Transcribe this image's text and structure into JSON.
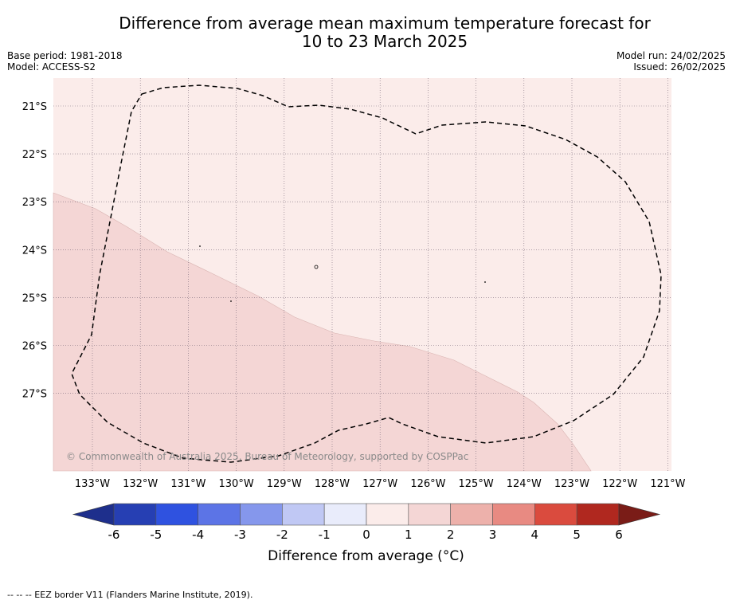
{
  "title": {
    "line1": "Difference from average mean maximum temperature forecast for",
    "line2": "10 to 23 March 2025"
  },
  "meta": {
    "base_period": "Base period: 1981-2018",
    "model": "Model: ACCESS-S2",
    "model_run": "Model run: 24/02/2025",
    "issued": "Issued: 26/02/2025"
  },
  "map": {
    "lon_labels": [
      "133°W",
      "132°W",
      "131°W",
      "130°W",
      "129°W",
      "128°W",
      "127°W",
      "126°W",
      "125°W",
      "124°W",
      "123°W",
      "122°W",
      "121°W"
    ],
    "lat_labels": [
      "21°S",
      "22°S",
      "23°S",
      "24°S",
      "25°S",
      "26°S",
      "27°S"
    ],
    "copyright": "© Commonwealth of Australia 2025, Bureau of Meteorology, supported by COSPPac",
    "regions": [
      {
        "category": "0 to 1",
        "color": "#fbecea"
      },
      {
        "category": "1 to 2",
        "color": "#f4d6d5"
      }
    ]
  },
  "colorbar": {
    "labels": [
      "-6",
      "-5",
      "-4",
      "-3",
      "-2",
      "-1",
      "0",
      "1",
      "2",
      "3",
      "4",
      "5",
      "6"
    ],
    "colors": [
      "#1e2f8c",
      "#263fb3",
      "#2f52e0",
      "#5c74e6",
      "#8597ec",
      "#c0c8f4",
      "#e9ecfb",
      "#fbecea",
      "#f4d6d5",
      "#edb1ab",
      "#e88a82",
      "#da4b3e",
      "#b0281f",
      "#7a1c17"
    ],
    "label": "Difference from average (",
    "unit": "°C)"
  },
  "footnote": "-- -- -- EEZ border V11 (Flanders Marine Institute, 2019)."
}
